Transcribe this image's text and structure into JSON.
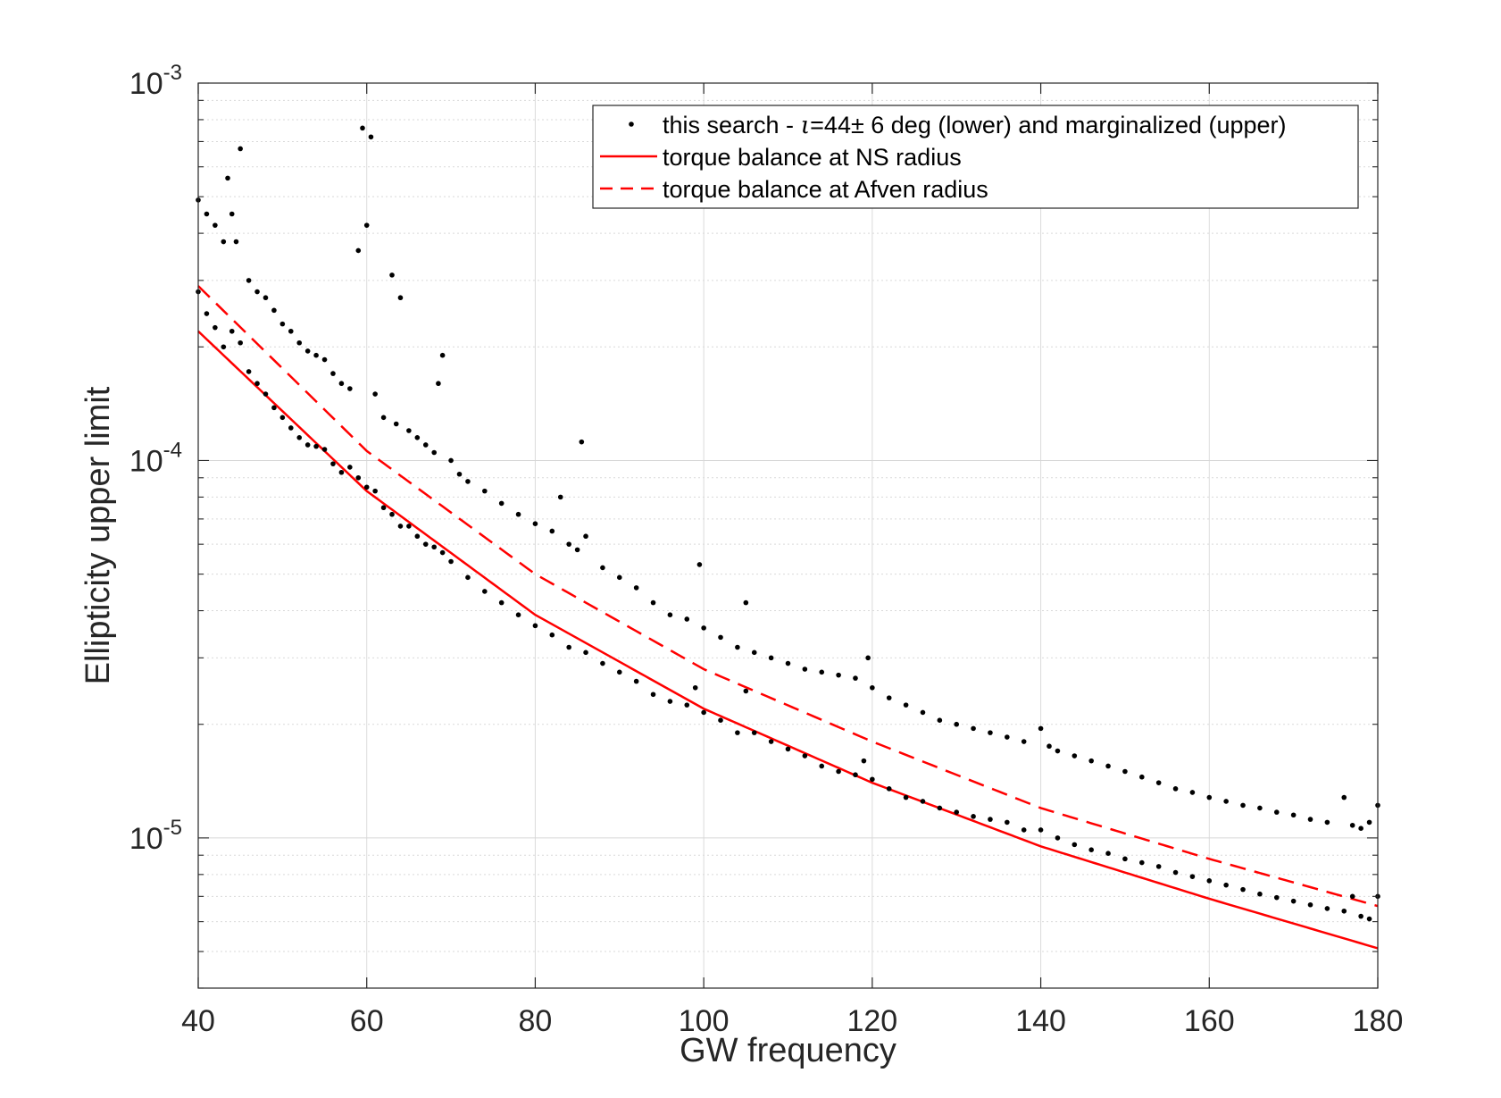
{
  "chart_data": {
    "type": "scatter",
    "title": "",
    "xlabel": "GW frequency",
    "ylabel": "Ellipticity upper limit",
    "xlim": [
      40,
      180
    ],
    "ylim": [
      4e-06,
      0.001
    ],
    "yscale": "log",
    "grid": true,
    "legend_position": "top-right",
    "x_ticks": [
      40,
      60,
      80,
      100,
      120,
      140,
      160,
      180
    ],
    "x_tick_labels": [
      "40",
      "60",
      "80",
      "100",
      "120",
      "140",
      "160",
      "180"
    ],
    "y_ticks": [
      1e-05,
      0.0001,
      0.001
    ],
    "y_tick_labels": [
      {
        "base": "10",
        "exp": "-5"
      },
      {
        "base": "10",
        "exp": "-4"
      },
      {
        "base": "10",
        "exp": "-3"
      }
    ],
    "colors": {
      "dots": "#000000",
      "ns_line": "#ff0000",
      "afven_line": "#ff0000"
    },
    "legend": [
      {
        "label_prefix": "this search - ",
        "label_symbol": "ι",
        "label_suffix": "=44± 6 deg (lower) and marginalized (upper)",
        "style": "dot"
      },
      {
        "label": "torque balance at NS radius",
        "style": "solid"
      },
      {
        "label": "torque balance at Afven radius",
        "style": "dashed"
      }
    ],
    "series": [
      {
        "name": "torque balance at NS radius",
        "style": "solid",
        "x": [
          40,
          60,
          80,
          100,
          120,
          140,
          160,
          180
        ],
        "values": [
          0.00022,
          8.3e-05,
          3.9e-05,
          2.2e-05,
          1.4e-05,
          9.5e-06,
          6.9e-06,
          5.1e-06
        ]
      },
      {
        "name": "torque balance at Afven radius",
        "style": "dashed",
        "x": [
          40,
          60,
          80,
          100,
          120,
          140,
          160,
          180
        ],
        "values": [
          0.00029,
          0.000106,
          5e-05,
          2.8e-05,
          1.8e-05,
          1.2e-05,
          8.8e-06,
          6.6e-06
        ]
      },
      {
        "name": "this search - lower",
        "style": "dot",
        "x": [
          40,
          41,
          42,
          43,
          44,
          45,
          46,
          47,
          48,
          49,
          50,
          51,
          52,
          53,
          54,
          55,
          56,
          57,
          58,
          59,
          60,
          61,
          62,
          63,
          64,
          65,
          66,
          67,
          68,
          69,
          70,
          72,
          74,
          76,
          78,
          80,
          82,
          84,
          86,
          88,
          90,
          92,
          94,
          96,
          98,
          99,
          100,
          102,
          104,
          105,
          106,
          108,
          110,
          112,
          114,
          116,
          118,
          119,
          120,
          122,
          124,
          126,
          128,
          130,
          132,
          134,
          136,
          138,
          140,
          142,
          144,
          146,
          148,
          150,
          152,
          154,
          156,
          158,
          160,
          162,
          164,
          166,
          168,
          170,
          172,
          174,
          176,
          177,
          178,
          179,
          180
        ],
        "values": [
          0.00028,
          0.000245,
          0.000225,
          0.0002,
          0.00022,
          0.000205,
          0.000172,
          0.00016,
          0.00015,
          0.000138,
          0.00013,
          0.000122,
          0.000115,
          0.00011,
          0.000109,
          0.000107,
          9.8e-05,
          9.3e-05,
          9.6e-05,
          9e-05,
          8.5e-05,
          8.3e-05,
          7.5e-05,
          7.2e-05,
          6.7e-05,
          6.7e-05,
          6.3e-05,
          6e-05,
          5.9e-05,
          5.7e-05,
          5.4e-05,
          4.9e-05,
          4.5e-05,
          4.2e-05,
          3.9e-05,
          3.65e-05,
          3.45e-05,
          3.2e-05,
          3.1e-05,
          2.9e-05,
          2.75e-05,
          2.6e-05,
          2.4e-05,
          2.3e-05,
          2.25e-05,
          2.5e-05,
          2.15e-05,
          2.05e-05,
          1.9e-05,
          2.45e-05,
          1.9e-05,
          1.8e-05,
          1.72e-05,
          1.65e-05,
          1.55e-05,
          1.5e-05,
          1.47e-05,
          1.6e-05,
          1.43e-05,
          1.35e-05,
          1.28e-05,
          1.25e-05,
          1.2e-05,
          1.17e-05,
          1.14e-05,
          1.12e-05,
          1.1e-05,
          1.05e-05,
          1.05e-05,
          1e-05,
          9.6e-06,
          9.3e-06,
          9.1e-06,
          8.8e-06,
          8.6e-06,
          8.4e-06,
          8.1e-06,
          7.9e-06,
          7.7e-06,
          7.5e-06,
          7.3e-06,
          7.1e-06,
          6.95e-06,
          6.8e-06,
          6.65e-06,
          6.5e-06,
          6.4e-06,
          7e-06,
          6.2e-06,
          6.1e-06,
          7e-06
        ]
      },
      {
        "name": "this search - marginalized",
        "style": "dot",
        "x": [
          40,
          41,
          42,
          43,
          43.5,
          44,
          44.5,
          45,
          46,
          47,
          48,
          49,
          50,
          51,
          52,
          53,
          54,
          55,
          56,
          57,
          58,
          59,
          59.5,
          60,
          60.5,
          61,
          62,
          63,
          63.5,
          64,
          65,
          66,
          67,
          68,
          68.5,
          69,
          70,
          71,
          72,
          74,
          76,
          78,
          80,
          82,
          83,
          84,
          85,
          85.5,
          86,
          88,
          90,
          92,
          94,
          96,
          98,
          99.5,
          100,
          102,
          104,
          105,
          106,
          108,
          110,
          112,
          114,
          116,
          118,
          119.5,
          120,
          122,
          124,
          126,
          128,
          130,
          132,
          134,
          136,
          138,
          140,
          141,
          142,
          144,
          146,
          148,
          150,
          152,
          154,
          156,
          158,
          160,
          162,
          164,
          166,
          168,
          170,
          172,
          174,
          176,
          177,
          178,
          179,
          180
        ],
        "values": [
          0.00049,
          0.00045,
          0.00042,
          0.00038,
          0.00056,
          0.00045,
          0.00038,
          0.00067,
          0.0003,
          0.00028,
          0.00027,
          0.00025,
          0.00023,
          0.00022,
          0.000205,
          0.000195,
          0.00019,
          0.000185,
          0.00017,
          0.00016,
          0.000155,
          0.00036,
          0.00076,
          0.00042,
          0.00072,
          0.00015,
          0.00013,
          0.00031,
          0.000125,
          0.00027,
          0.00012,
          0.000115,
          0.00011,
          0.000105,
          0.00016,
          0.00019,
          0.0001,
          9.2e-05,
          8.8e-05,
          8.3e-05,
          7.7e-05,
          7.2e-05,
          6.8e-05,
          6.5e-05,
          8e-05,
          6e-05,
          5.8e-05,
          0.000112,
          6.3e-05,
          5.2e-05,
          4.9e-05,
          4.6e-05,
          4.2e-05,
          3.9e-05,
          3.8e-05,
          5.3e-05,
          3.6e-05,
          3.4e-05,
          3.2e-05,
          4.2e-05,
          3.1e-05,
          3e-05,
          2.9e-05,
          2.8e-05,
          2.75e-05,
          2.7e-05,
          2.65e-05,
          3e-05,
          2.5e-05,
          2.35e-05,
          2.25e-05,
          2.15e-05,
          2.05e-05,
          2e-05,
          1.95e-05,
          1.9e-05,
          1.85e-05,
          1.8e-05,
          1.95e-05,
          1.75e-05,
          1.7e-05,
          1.65e-05,
          1.6e-05,
          1.55e-05,
          1.5e-05,
          1.45e-05,
          1.4e-05,
          1.35e-05,
          1.32e-05,
          1.28e-05,
          1.25e-05,
          1.22e-05,
          1.2e-05,
          1.17e-05,
          1.15e-05,
          1.12e-05,
          1.1e-05,
          1.28e-05,
          1.08e-05,
          1.06e-05,
          1.1e-05,
          1.22e-05
        ]
      }
    ]
  }
}
